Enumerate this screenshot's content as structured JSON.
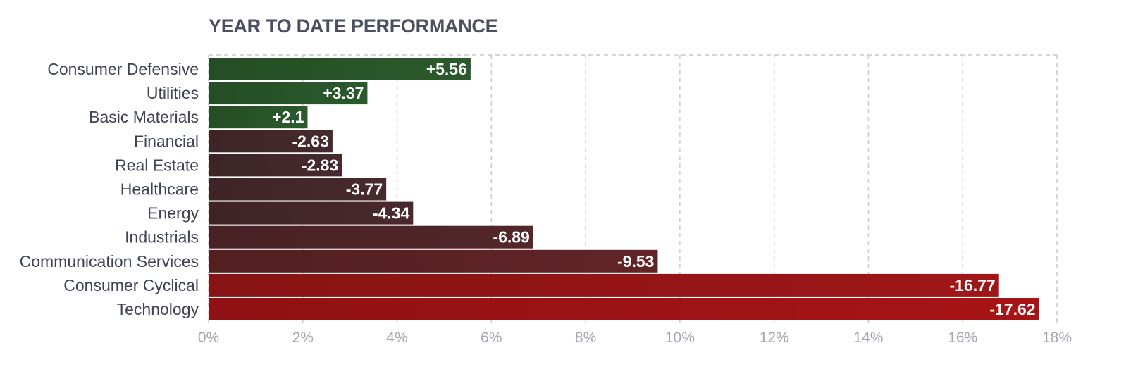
{
  "chart_data": {
    "type": "bar",
    "orientation": "horizontal",
    "title": "YEAR TO DATE PERFORMANCE",
    "categories": [
      "Consumer Defensive",
      "Utilities",
      "Basic Materials",
      "Financial",
      "Real Estate",
      "Healthcare",
      "Energy",
      "Industrials",
      "Communication Services",
      "Consumer Cyclical",
      "Technology"
    ],
    "values": [
      5.56,
      3.37,
      2.1,
      -2.63,
      -2.83,
      -3.77,
      -4.34,
      -6.89,
      -9.53,
      -16.77,
      -17.62
    ],
    "value_labels": [
      "+5.56",
      "+3.37",
      "+2.1",
      "-2.63",
      "-2.83",
      "-3.77",
      "-4.34",
      "-6.89",
      "-9.53",
      "-16.77",
      "-17.62"
    ],
    "bar_length": "absolute value",
    "xlim": [
      0,
      18
    ],
    "xticks": [
      0,
      2,
      4,
      6,
      8,
      10,
      12,
      14,
      16,
      18
    ],
    "xtick_labels": [
      "0%",
      "2%",
      "4%",
      "6%",
      "8%",
      "10%",
      "12%",
      "14%",
      "16%",
      "18%"
    ],
    "grid": true,
    "legend": "none",
    "colors": {
      "positive": "#2b5a2c",
      "negative_dark": "#462a2e",
      "negative_bright": "#a81416",
      "grid": "#c8cacf",
      "title": "#4a5061"
    }
  }
}
